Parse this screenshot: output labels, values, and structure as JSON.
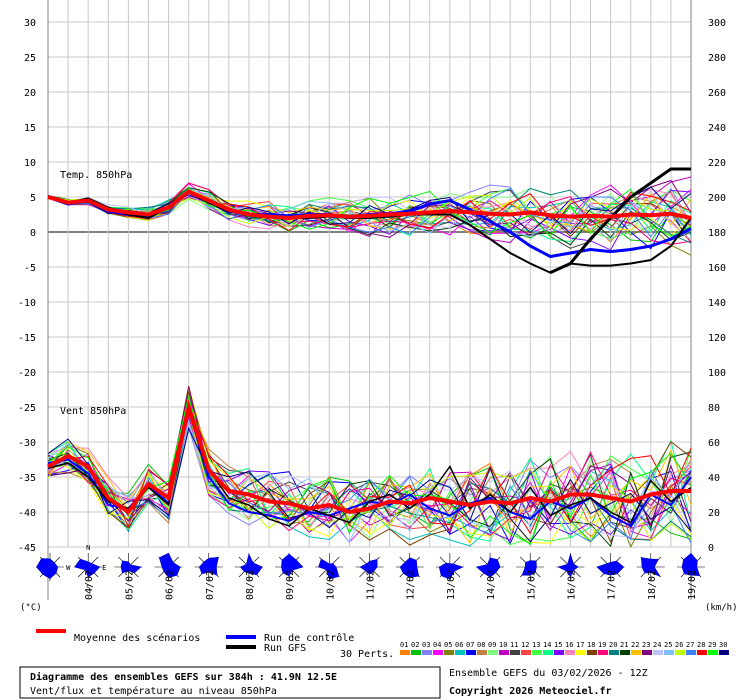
{
  "chart_data": {
    "type": "line",
    "left_axis": {
      "ticks": [
        30,
        25,
        20,
        15,
        10,
        5,
        0,
        -5,
        -10,
        -15,
        -20,
        -25,
        -30,
        -35,
        -40,
        -45
      ],
      "range": [
        -45,
        30
      ],
      "unit": "(°C)"
    },
    "right_axis": {
      "ticks": [
        300,
        280,
        260,
        240,
        220,
        200,
        180,
        160,
        140,
        120,
        100,
        80,
        60,
        40,
        20,
        0
      ],
      "range": [
        0,
        300
      ],
      "unit": "(km/h)"
    },
    "x_labels": [
      "04/02",
      "05/02",
      "06/02",
      "07/02",
      "08/02",
      "09/02",
      "10/02",
      "11/02",
      "12/02",
      "13/02",
      "14/02",
      "15/02",
      "16/02",
      "17/02",
      "18/02",
      "19/02"
    ],
    "x_range_hours": [
      0,
      384
    ],
    "grid": true,
    "temp_panel": {
      "label": "Temp. 850hPa",
      "mean": [
        [
          0,
          5
        ],
        [
          12,
          4.2
        ],
        [
          24,
          4.5
        ],
        [
          36,
          3.2
        ],
        [
          48,
          2.8
        ],
        [
          60,
          2.5
        ],
        [
          72,
          3.5
        ],
        [
          84,
          5.8
        ],
        [
          96,
          4.5
        ],
        [
          108,
          3.2
        ],
        [
          120,
          2.5
        ],
        [
          132,
          2.2
        ],
        [
          144,
          2
        ],
        [
          156,
          2.3
        ],
        [
          168,
          2.4
        ],
        [
          180,
          2.2
        ],
        [
          192,
          2.3
        ],
        [
          204,
          2.5
        ],
        [
          216,
          2.6
        ],
        [
          228,
          2.8
        ],
        [
          240,
          3
        ],
        [
          252,
          2.8
        ],
        [
          264,
          2.6
        ],
        [
          276,
          2.5
        ],
        [
          288,
          2.8
        ],
        [
          300,
          2.4
        ],
        [
          312,
          2.2
        ],
        [
          324,
          2.3
        ],
        [
          336,
          2.2
        ],
        [
          348,
          2.5
        ],
        [
          360,
          2.4
        ],
        [
          372,
          2.6
        ],
        [
          384,
          2
        ]
      ],
      "control": [
        [
          0,
          5
        ],
        [
          12,
          4
        ],
        [
          24,
          4.5
        ],
        [
          36,
          3
        ],
        [
          48,
          2.5
        ],
        [
          60,
          2.2
        ],
        [
          72,
          3.5
        ],
        [
          84,
          5.8
        ],
        [
          96,
          4.5
        ],
        [
          108,
          3
        ],
        [
          120,
          2.5
        ],
        [
          132,
          2.5
        ],
        [
          144,
          2.3
        ],
        [
          156,
          2.5
        ],
        [
          168,
          2.5
        ],
        [
          180,
          2.2
        ],
        [
          192,
          2.5
        ],
        [
          204,
          2.6
        ],
        [
          216,
          3
        ],
        [
          228,
          4
        ],
        [
          240,
          4.5
        ],
        [
          252,
          3.2
        ],
        [
          264,
          1.5
        ],
        [
          276,
          0
        ],
        [
          288,
          -2
        ],
        [
          300,
          -3.5
        ],
        [
          312,
          -3
        ],
        [
          324,
          -2.5
        ],
        [
          336,
          -2.8
        ],
        [
          348,
          -2.5
        ],
        [
          360,
          -2
        ],
        [
          372,
          -1
        ],
        [
          384,
          0.5
        ]
      ],
      "gfs": [
        [
          0,
          5
        ],
        [
          12,
          4.2
        ],
        [
          24,
          4.8
        ],
        [
          36,
          3.5
        ],
        [
          48,
          2.5
        ],
        [
          60,
          2
        ],
        [
          72,
          3.5
        ],
        [
          84,
          5.8
        ],
        [
          96,
          4.2
        ],
        [
          108,
          3
        ],
        [
          120,
          2.5
        ],
        [
          132,
          2.2
        ],
        [
          144,
          2
        ],
        [
          156,
          2
        ],
        [
          168,
          2.2
        ],
        [
          180,
          2
        ],
        [
          192,
          2
        ],
        [
          204,
          2.2
        ],
        [
          216,
          2.5
        ],
        [
          228,
          2.5
        ],
        [
          240,
          2.5
        ],
        [
          252,
          1
        ],
        [
          264,
          -1
        ],
        [
          276,
          -3
        ],
        [
          288,
          -4.5
        ],
        [
          300,
          -5.8
        ],
        [
          312,
          -4.5
        ],
        [
          324,
          -4.8
        ],
        [
          336,
          -4.8
        ],
        [
          348,
          -4.5
        ],
        [
          360,
          -4
        ],
        [
          372,
          -2
        ],
        [
          384,
          2
        ]
      ],
      "gfs_peak": [
        [
          300,
          -5.8
        ],
        [
          312,
          -4.5
        ],
        [
          324,
          -1
        ],
        [
          336,
          2
        ],
        [
          348,
          5
        ],
        [
          360,
          7
        ],
        [
          372,
          9
        ],
        [
          384,
          9
        ]
      ]
    },
    "wind_panel": {
      "label": "Vent 850hPa",
      "mean_kmh": [
        [
          0,
          46
        ],
        [
          12,
          52
        ],
        [
          24,
          46
        ],
        [
          36,
          28
        ],
        [
          48,
          20
        ],
        [
          60,
          36
        ],
        [
          72,
          28
        ],
        [
          84,
          80
        ],
        [
          96,
          44
        ],
        [
          108,
          32
        ],
        [
          120,
          30
        ],
        [
          132,
          26
        ],
        [
          144,
          25
        ],
        [
          156,
          22
        ],
        [
          168,
          24
        ],
        [
          180,
          20
        ],
        [
          192,
          22
        ],
        [
          204,
          26
        ],
        [
          216,
          25
        ],
        [
          228,
          28
        ],
        [
          240,
          26
        ],
        [
          252,
          24
        ],
        [
          264,
          26
        ],
        [
          276,
          25
        ],
        [
          288,
          28
        ],
        [
          300,
          26
        ],
        [
          312,
          30
        ],
        [
          324,
          30
        ],
        [
          336,
          28
        ],
        [
          348,
          26
        ],
        [
          360,
          30
        ],
        [
          372,
          32
        ],
        [
          384,
          32
        ]
      ],
      "control_kmh": [
        [
          0,
          48
        ],
        [
          12,
          50
        ],
        [
          24,
          42
        ],
        [
          36,
          24
        ],
        [
          48,
          22
        ],
        [
          60,
          35
        ],
        [
          72,
          25
        ],
        [
          84,
          78
        ],
        [
          96,
          40
        ],
        [
          108,
          25
        ],
        [
          120,
          20
        ],
        [
          132,
          18
        ],
        [
          144,
          15
        ],
        [
          156,
          20
        ],
        [
          168,
          18
        ],
        [
          180,
          22
        ],
        [
          192,
          26
        ],
        [
          204,
          24
        ],
        [
          216,
          30
        ],
        [
          228,
          22
        ],
        [
          240,
          18
        ],
        [
          252,
          25
        ],
        [
          264,
          28
        ],
        [
          276,
          20
        ],
        [
          288,
          16
        ],
        [
          300,
          26
        ],
        [
          312,
          22
        ],
        [
          324,
          28
        ],
        [
          336,
          18
        ],
        [
          348,
          12
        ],
        [
          360,
          30
        ],
        [
          372,
          24
        ],
        [
          384,
          40
        ]
      ],
      "gfs_kmh": [
        [
          0,
          45
        ],
        [
          12,
          48
        ],
        [
          24,
          40
        ],
        [
          36,
          26
        ],
        [
          48,
          22
        ],
        [
          60,
          34
        ],
        [
          72,
          24
        ],
        [
          84,
          82
        ],
        [
          96,
          44
        ],
        [
          108,
          28
        ],
        [
          120,
          24
        ],
        [
          132,
          16
        ],
        [
          144,
          12
        ],
        [
          156,
          22
        ],
        [
          168,
          18
        ],
        [
          180,
          14
        ],
        [
          192,
          26
        ],
        [
          204,
          30
        ],
        [
          216,
          22
        ],
        [
          228,
          30
        ],
        [
          240,
          46
        ],
        [
          252,
          22
        ],
        [
          264,
          30
        ],
        [
          276,
          20
        ],
        [
          288,
          34
        ],
        [
          300,
          18
        ],
        [
          312,
          24
        ],
        [
          324,
          28
        ],
        [
          336,
          20
        ],
        [
          348,
          14
        ],
        [
          360,
          38
        ],
        [
          372,
          26
        ],
        [
          384,
          34
        ]
      ]
    },
    "legend": {
      "mean_label": "Moyenne des scénarios",
      "control_label": "Run de contrôle",
      "gfs_label": "Run GFS",
      "perts_label": "30 Perts.",
      "pert_numbers": [
        "01",
        "02",
        "03",
        "04",
        "05",
        "06",
        "07",
        "08",
        "09",
        "10",
        "11",
        "12",
        "13",
        "14",
        "15",
        "16",
        "17",
        "18",
        "19",
        "20",
        "21",
        "22",
        "23",
        "24",
        "25",
        "26",
        "27",
        "28",
        "29",
        "30"
      ],
      "pert_colors": [
        "#ff8000",
        "#00c000",
        "#8080ff",
        "#ff00ff",
        "#808000",
        "#00c0c0",
        "#0000ff",
        "#c08040",
        "#80ff80",
        "#c000c0",
        "#404040",
        "#ff4040",
        "#40ff40",
        "#00ff80",
        "#8000ff",
        "#ff80c0",
        "#ffff00",
        "#804000",
        "#ff0080",
        "#008080",
        "#004000",
        "#ffc000",
        "#800080",
        "#c0c0ff",
        "#80c0ff",
        "#c0ff00",
        "#4080ff",
        "#ff0000",
        "#00ff00",
        "#000080"
      ]
    },
    "compass": {
      "north": "N",
      "south": "S",
      "west": "W",
      "east": "E"
    },
    "colors": {
      "mean": "#ff0000",
      "control": "#0000ff",
      "gfs": "#000000",
      "wind_rose": "#0000ff"
    }
  },
  "info": {
    "title": "Diagramme des ensembles GEFS sur 384h : 41.9N 12.5E",
    "subtitle": "Vent/flux et température au niveau 850hPa",
    "run": "Ensemble GEFS du 03/02/2026 - 12Z",
    "copyright": "Copyright 2026 Meteociel.fr"
  }
}
